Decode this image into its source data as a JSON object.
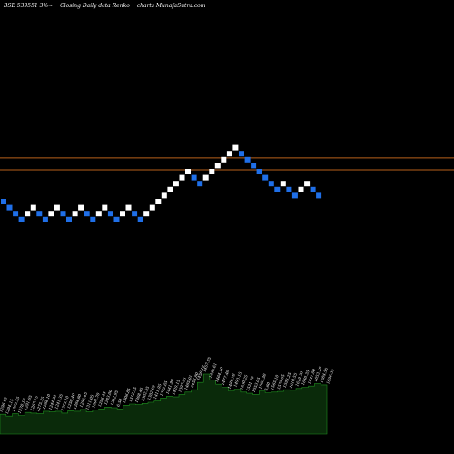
{
  "header": {
    "symbol": "BSE 539551 3%~",
    "chart_desc": "Closing Daily data Renko",
    "source": "charts MunafaSutra.com"
  },
  "colors": {
    "background": "#000000",
    "up_brick": "#ffffff",
    "down_brick": "#1f6fe8",
    "reference_line": "#b8601a",
    "volume_fill": "#0a2a0a",
    "volume_stroke": "#1f8f1f",
    "volume_label": "#ffffff"
  },
  "chart_data": {
    "type": "renko",
    "direction": [
      "down",
      "down",
      "down",
      "down",
      "up",
      "up",
      "down",
      "down",
      "up",
      "up",
      "down",
      "down",
      "up",
      "up",
      "down",
      "down",
      "up",
      "up",
      "down",
      "down",
      "up",
      "up",
      "down",
      "down",
      "up",
      "up",
      "up",
      "up",
      "up",
      "up",
      "up",
      "up",
      "down",
      "down",
      "up",
      "up",
      "up",
      "up",
      "up",
      "up",
      "down",
      "down",
      "down",
      "down",
      "down",
      "down",
      "down",
      "up",
      "down",
      "down",
      "up",
      "up",
      "down",
      "down"
    ],
    "brick_levels": [
      0,
      -1,
      -2,
      -3,
      -2,
      -1,
      -2,
      -3,
      -2,
      -1,
      -2,
      -3,
      -2,
      -1,
      -2,
      -3,
      -2,
      -1,
      -2,
      -3,
      -2,
      -1,
      -2,
      -3,
      -2,
      -1,
      0,
      1,
      2,
      3,
      4,
      5,
      4,
      3,
      4,
      5,
      6,
      7,
      8,
      9,
      8,
      7,
      6,
      5,
      4,
      3,
      2,
      3,
      2,
      1,
      2,
      3,
      2,
      1
    ],
    "reference_lines": [
      7.3,
      5.3
    ],
    "volume": [
      0.33,
      0.3,
      0.34,
      0.31,
      0.36,
      0.35,
      0.34,
      0.38,
      0.37,
      0.38,
      0.35,
      0.39,
      0.38,
      0.41,
      0.37,
      0.4,
      0.42,
      0.45,
      0.44,
      0.42,
      0.48,
      0.5,
      0.49,
      0.51,
      0.53,
      0.55,
      0.6,
      0.63,
      0.62,
      0.66,
      0.7,
      0.74,
      0.86,
      1.0,
      0.9,
      0.83,
      0.78,
      0.72,
      0.75,
      0.7,
      0.68,
      0.66,
      0.72,
      0.69,
      0.7,
      0.71,
      0.74,
      0.73,
      0.76,
      0.78,
      0.8,
      0.84,
      0.82,
      0.8
    ],
    "volume_labels": [
      "1296.05",
      "1294.15",
      "1293.55",
      "1278.10",
      "1291.65",
      "1267.75",
      "1275.75",
      "1268.10",
      "1244.30",
      "1241.35",
      "1273.10",
      "1250.40",
      "1284.80",
      "1296.45",
      "1311.05",
      "1304.70",
      "1296.45",
      "1283.00",
      "1302.95",
      "6.50",
      "1306.85",
      "1312.55",
      "1308.45",
      "1302.55",
      "1302.09",
      "1411.95",
      "1362.65",
      "1441.90",
      "1429.15",
      "1397.95",
      "1485.01",
      "1456.80",
      "1450.19",
      "1457.95",
      "1466.61",
      "1464.10",
      "1477.40",
      "1488.70",
      "1493.15",
      "1530.25",
      "1531.90",
      "1553.05",
      "1560.30",
      "5.60",
      "1565.10",
      "1575.05",
      "1593.25",
      "1610.55",
      "1619.30",
      "1640.35",
      "1647.00",
      "1653.10",
      "1684.55",
      "1696.55"
    ]
  }
}
